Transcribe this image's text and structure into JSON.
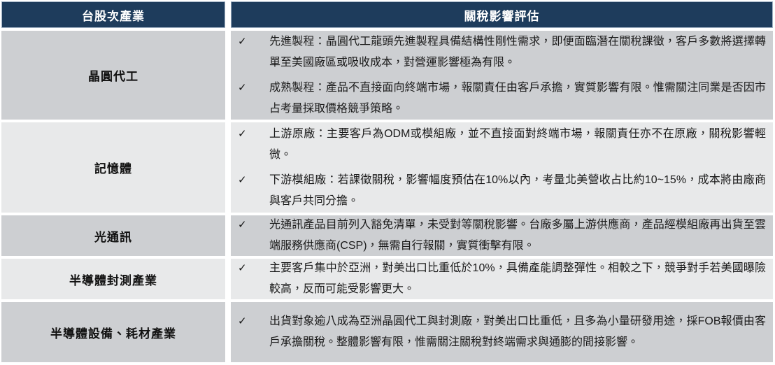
{
  "table": {
    "checkmark": "✓",
    "header": {
      "industry": "台股次產業",
      "assessment": "關稅影響評估"
    },
    "rows": [
      {
        "industry": "晶圓代工",
        "bullets": [
          "先進製程：晶圓代工龍頭先進製程具備結構性剛性需求，即便面臨潛在關稅課徵，客戶多數將選擇轉單至美國廠區或吸收成本，對營運影響極為有限。",
          "成熟製程：產品不直接面向終端市場，報關責任由客戶承擔，實質影響有限。惟需關注同業是否因市占考量採取價格競爭策略。"
        ]
      },
      {
        "industry": "記憶體",
        "bullets": [
          "上游原廠：主要客戶為ODM或模組廠，並不直接面對終端市場，報關責任亦不在原廠，關稅影響輕微。",
          "下游模組廠：若課徵關稅，影響幅度預估在10%以內，考量北美營收占比約10~15%，成本將由廠商與客戶共同分擔。"
        ]
      },
      {
        "industry": "光通訊",
        "bullets": [
          "光通訊產品目前列入豁免清單，未受對等關稅影響。台廠多屬上游供應商，產品經模組廠再出貨至雲端服務供應商(CSP)，無需自行報關，實質衝擊有限。"
        ]
      },
      {
        "industry": "半導體封測產業",
        "bullets": [
          "主要客戶集中於亞洲，對美出口比重低於10%，具備產能調整彈性。相較之下，競爭對手若美國曝險較高，反而可能受影響更大。"
        ]
      },
      {
        "industry": "半導體設備、耗材產業",
        "bullets": [
          "出貨對象逾八成為亞洲晶圓代工與封測廠，對美出口比重低，且多為小量研發用途，採FOB報價由客戶承擔關稅。整體影響有限，惟需關注關稅對終端需求與通膨的間接影響。"
        ]
      }
    ],
    "colors": {
      "header_bg": "#1e3c5c",
      "header_text": "#ffffff",
      "row_dark": "#cdcfd2",
      "row_light": "#e8e9ea",
      "body_text": "#1a1a1a"
    }
  }
}
